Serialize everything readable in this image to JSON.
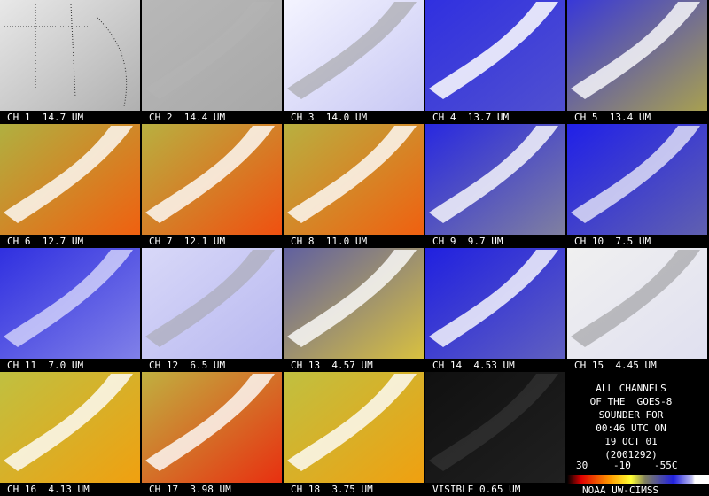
{
  "panels": [
    {
      "label": "CH 1  14.7 UM"
    },
    {
      "label": "CH 2  14.4 UM"
    },
    {
      "label": "CH 3  14.0 UM"
    },
    {
      "label": "CH 4  13.7 UM"
    },
    {
      "label": "CH 5  13.4 UM"
    },
    {
      "label": "CH 6  12.7 UM"
    },
    {
      "label": "CH 7  12.1 UM"
    },
    {
      "label": "CH 8  11.0 UM"
    },
    {
      "label": "CH 9  9.7 UM"
    },
    {
      "label": "CH 10  7.5 UM"
    },
    {
      "label": "CH 11  7.0 UM"
    },
    {
      "label": "CH 12  6.5 UM"
    },
    {
      "label": "CH 13  4.57 UM"
    },
    {
      "label": "CH 14  4.53 UM"
    },
    {
      "label": "CH 15  4.45 UM"
    },
    {
      "label": "CH 16  4.13 UM"
    },
    {
      "label": "CH 17  3.98 UM"
    },
    {
      "label": "CH 18  3.75 UM"
    },
    {
      "label": "VISIBLE 0.65 UM"
    }
  ],
  "info": {
    "lines": [
      "ALL CHANNELS",
      "OF THE  GOES-8",
      "SOUNDER FOR",
      "00:46 UTC ON",
      "19 OCT 01",
      "(2001292)"
    ],
    "scale": [
      "30",
      "-10",
      "-55C"
    ],
    "credit": "NOAA UW-CIMSS"
  }
}
